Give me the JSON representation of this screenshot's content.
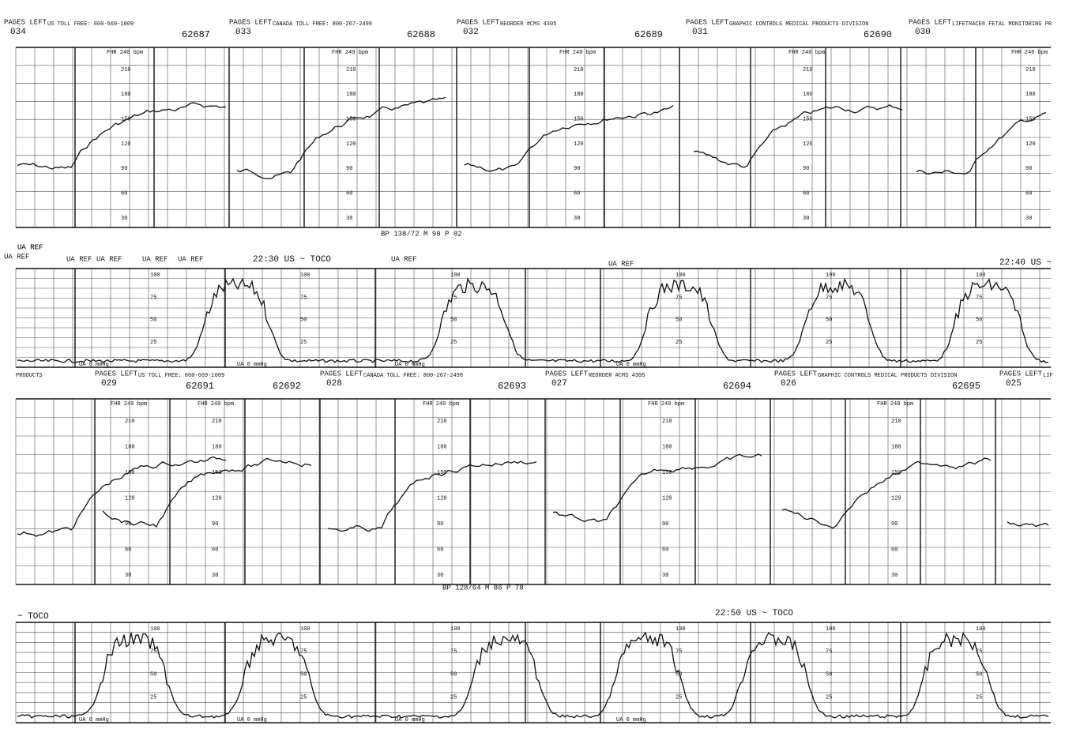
{
  "fhr_strip_1": {
    "segments": [
      {
        "pages": "PAGES LEFT",
        "page_no": "034",
        "note": "US TOLL FREE: 800-669-1009",
        "serial": "62687"
      },
      {
        "pages": "PAGES LEFT",
        "page_no": "033",
        "note": "CANADA TOLL FREE: 800-267-2498",
        "serial": "62688"
      },
      {
        "pages": "PAGES LEFT",
        "page_no": "032",
        "note": "REORDER #CMS 4305",
        "serial": "62689"
      },
      {
        "pages": "PAGES LEFT",
        "page_no": "031",
        "note": "GRAPHIC CONTROLS MEDICAL PRODUCTS DIVISION",
        "serial": "62690"
      },
      {
        "pages": "PAGES LEFT",
        "page_no": "030",
        "note": "LIFETRACE® FETAL MONITORING PR"
      }
    ],
    "scale_title": "FHR 240 bpm",
    "scale": [
      "210",
      "180",
      "150",
      "120",
      "90",
      "60",
      "30"
    ],
    "bp": "BP 138/72 M 98 P 82"
  },
  "ua_strip_1": {
    "refs": [
      "UA REF",
      "UA REF",
      "UA REF",
      "UA REF",
      "UA REF",
      "UA REF",
      "UA REF"
    ],
    "time_1": "22:30 US ~ TOCO",
    "ref_2": "UA REF",
    "ref_3": "UA REF",
    "time_2": "22:40 US ~",
    "scale": [
      "100",
      "75",
      "50",
      "25"
    ],
    "zero": "UA 0 mmHg"
  },
  "fhr_strip_2": {
    "segments": [
      {
        "note": "PRODUCTS",
        "serial": "62691"
      },
      {
        "pages": "PAGES LEFT",
        "page_no": "029",
        "note": "US TOLL FREE: 800-669-1009",
        "serial": "62692"
      },
      {
        "pages": "PAGES LEFT",
        "page_no": "028",
        "note": "CANADA TOLL FREE: 800-267-2498",
        "serial": "62693"
      },
      {
        "pages": "PAGES LEFT",
        "page_no": "027",
        "note": "REORDER #CMS 4305",
        "serial": "62694"
      },
      {
        "pages": "PAGES LEFT",
        "page_no": "026",
        "note": "GRAPHIC CONTROLS MEDICAL PRODUCTS DIVISION",
        "serial": "62695"
      },
      {
        "pages": "PAGES LEFT",
        "page_no": "025",
        "note": "LIF"
      }
    ],
    "scale_title": "FHR 240 bpm",
    "scale": [
      "210",
      "180",
      "150",
      "120",
      "90",
      "60",
      "30"
    ],
    "bp": "BP 128/64 M 86 P 78"
  },
  "ua_strip_2": {
    "toco": "~ TOCO",
    "time": "22:50 US ~ TOCO",
    "scale": [
      "100",
      "75",
      "50",
      "25"
    ],
    "zero": "UA 0 mmHg"
  }
}
